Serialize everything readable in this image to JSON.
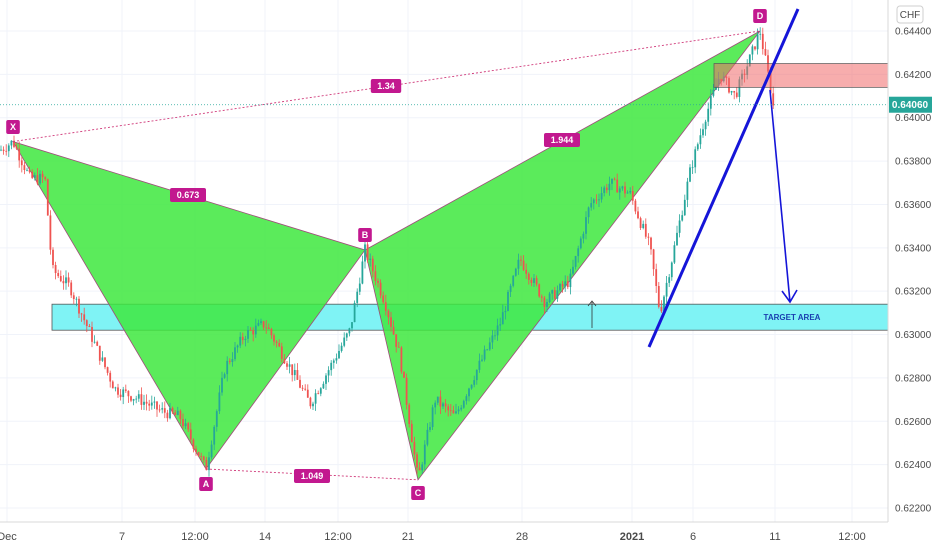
{
  "chart_data": {
    "type": "candlestick-harmonic",
    "currency": "CHF",
    "current_price": "0.64060",
    "ylim": [
      0.6215,
      0.645
    ],
    "y_ticks": [
      "0.64400",
      "0.64200",
      "0.64000",
      "0.63800",
      "0.63600",
      "0.63400",
      "0.63200",
      "0.63000",
      "0.62800",
      "0.62600",
      "0.62400",
      "0.62200"
    ],
    "x_ticks": [
      {
        "label": "Dec",
        "bold": false
      },
      {
        "label": "7",
        "bold": false
      },
      {
        "label": "12:00",
        "bold": false
      },
      {
        "label": "14",
        "bold": false
      },
      {
        "label": "12:00",
        "bold": false
      },
      {
        "label": "21",
        "bold": false
      },
      {
        "label": "28",
        "bold": false
      },
      {
        "label": "2021",
        "bold": true
      },
      {
        "label": "6",
        "bold": false
      },
      {
        "label": "11",
        "bold": false
      },
      {
        "label": "12:00",
        "bold": false
      }
    ],
    "pattern_points": [
      {
        "label": "X",
        "price": 0.6389
      },
      {
        "label": "A",
        "price": 0.6238
      },
      {
        "label": "B",
        "price": 0.6339
      },
      {
        "label": "C",
        "price": 0.6233
      },
      {
        "label": "D",
        "price": 0.644
      }
    ],
    "ratios": [
      "0.673",
      "1.049",
      "1.944",
      "1.34"
    ],
    "target_zone": {
      "label": "TARGET AREA",
      "low": 0.6302,
      "high": 0.6314
    },
    "resistance_zone": {
      "low": 0.6414,
      "high": 0.6425
    },
    "colors": {
      "pattern_fill": "#3ee83e",
      "label_bg": "#c2188f",
      "target_fill": "#7ff3f5",
      "resistance_fill": "#f06a6a",
      "trendline": "#1515d8",
      "bull": "#26a69a",
      "bear": "#ef5350",
      "price_badge": "#26a69a"
    }
  }
}
